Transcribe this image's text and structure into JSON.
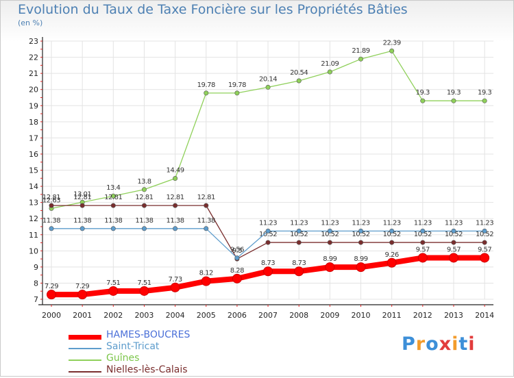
{
  "title": "Evolution du Taux de Taxe Foncière sur les Propriétés Bâties",
  "unit": "(en %)",
  "logo": {
    "letters": [
      "P",
      "r",
      "o",
      "x",
      "i",
      "t",
      "i"
    ],
    "colors": [
      "#3d8fd8",
      "#f39c2c",
      "#3d8fd8",
      "#e23c3c",
      "#f39c2c",
      "#3d8fd8",
      "#e23c3c"
    ]
  },
  "chart_data": {
    "type": "line",
    "title": "Evolution du Taux de Taxe Foncière sur les Propriétés Bâties",
    "ylabel": "(en %)",
    "xlabel": "",
    "x": [
      "2000",
      "2001",
      "2002",
      "2003",
      "2004",
      "2005",
      "2006",
      "2007",
      "2008",
      "2009",
      "2010",
      "2011",
      "2012",
      "2013",
      "2014"
    ],
    "ylim": [
      7,
      23
    ],
    "yticks": [
      "7",
      "8",
      "9",
      "10",
      "11",
      "12",
      "13",
      "14",
      "15",
      "16",
      "17",
      "18",
      "19",
      "20",
      "21",
      "22",
      "23"
    ],
    "grid": true,
    "legend_position": "bottom-left",
    "series": [
      {
        "name": "HAMES-BOUCRES",
        "color": "#ff0000",
        "labels": [
          "7.29",
          "7.29",
          "7.51",
          "7.51",
          "7.73",
          "8.12",
          "8.28",
          "8.73",
          "8.73",
          "8.99",
          "8.99",
          "9.26",
          "9.57",
          "9.57",
          "9.57"
        ],
        "values": [
          7.29,
          7.29,
          7.51,
          7.51,
          7.73,
          8.12,
          8.28,
          8.73,
          8.73,
          8.99,
          8.99,
          9.26,
          9.57,
          9.57,
          9.57
        ]
      },
      {
        "name": "Saint-Tricat",
        "color": "#5d9ccc",
        "labels": [
          "11.38",
          "11.38",
          "11.38",
          "11.38",
          "11.38",
          "11.38",
          "9.56",
          "11.23",
          "11.23",
          "11.23",
          "11.23",
          "11.23",
          "11.23",
          "11.23",
          "11.23"
        ],
        "values": [
          11.38,
          11.38,
          11.38,
          11.38,
          11.38,
          11.38,
          9.56,
          11.23,
          11.23,
          11.23,
          11.23,
          11.23,
          11.23,
          11.23,
          11.23
        ]
      },
      {
        "name": "Guînes",
        "color": "#8fd05a",
        "labels": [
          "12.63",
          "13.01",
          "13.4",
          "13.8",
          "14.49",
          "19.78",
          "19.78",
          "20.14",
          "20.54",
          "21.09",
          "21.89",
          "22.39",
          "19.3",
          "19.3",
          "19.3"
        ],
        "values": [
          12.63,
          13.01,
          13.4,
          13.8,
          14.49,
          19.78,
          19.78,
          20.14,
          20.54,
          21.09,
          21.89,
          22.39,
          19.3,
          19.3,
          19.3
        ]
      },
      {
        "name": "Nielles-lès-Calais",
        "color": "#7a2e2e",
        "labels": [
          "12.81",
          "12.81",
          "12.81",
          "12.81",
          "12.81",
          "12.81",
          "9.5",
          "10.52",
          "10.52",
          "10.52",
          "10.52",
          "10.52",
          "10.52",
          "10.52",
          "10.52"
        ],
        "values": [
          12.81,
          12.81,
          12.81,
          12.81,
          12.81,
          12.81,
          9.5,
          10.52,
          10.52,
          10.52,
          10.52,
          10.52,
          10.52,
          10.52,
          10.52
        ]
      }
    ]
  }
}
